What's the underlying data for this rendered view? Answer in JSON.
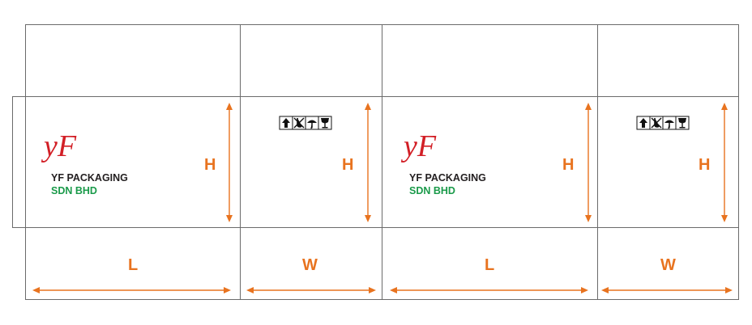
{
  "labels": {
    "height": "H",
    "length": "L",
    "width": "W"
  },
  "brand": {
    "logo": "yF",
    "name_line1": "YF PACKAGING",
    "name_line2": "SDN BHD"
  },
  "handling_symbols": [
    "this-way-up-icon",
    "do-not-use-hooks-icon",
    "keep-dry-icon",
    "fragile-icon"
  ],
  "colors": {
    "dimension": "#e8731f",
    "logo": "#d21f26",
    "brand_text": "#231f20",
    "brand_subtext": "#1a9a4a",
    "dieline": "#6b6b6b"
  }
}
